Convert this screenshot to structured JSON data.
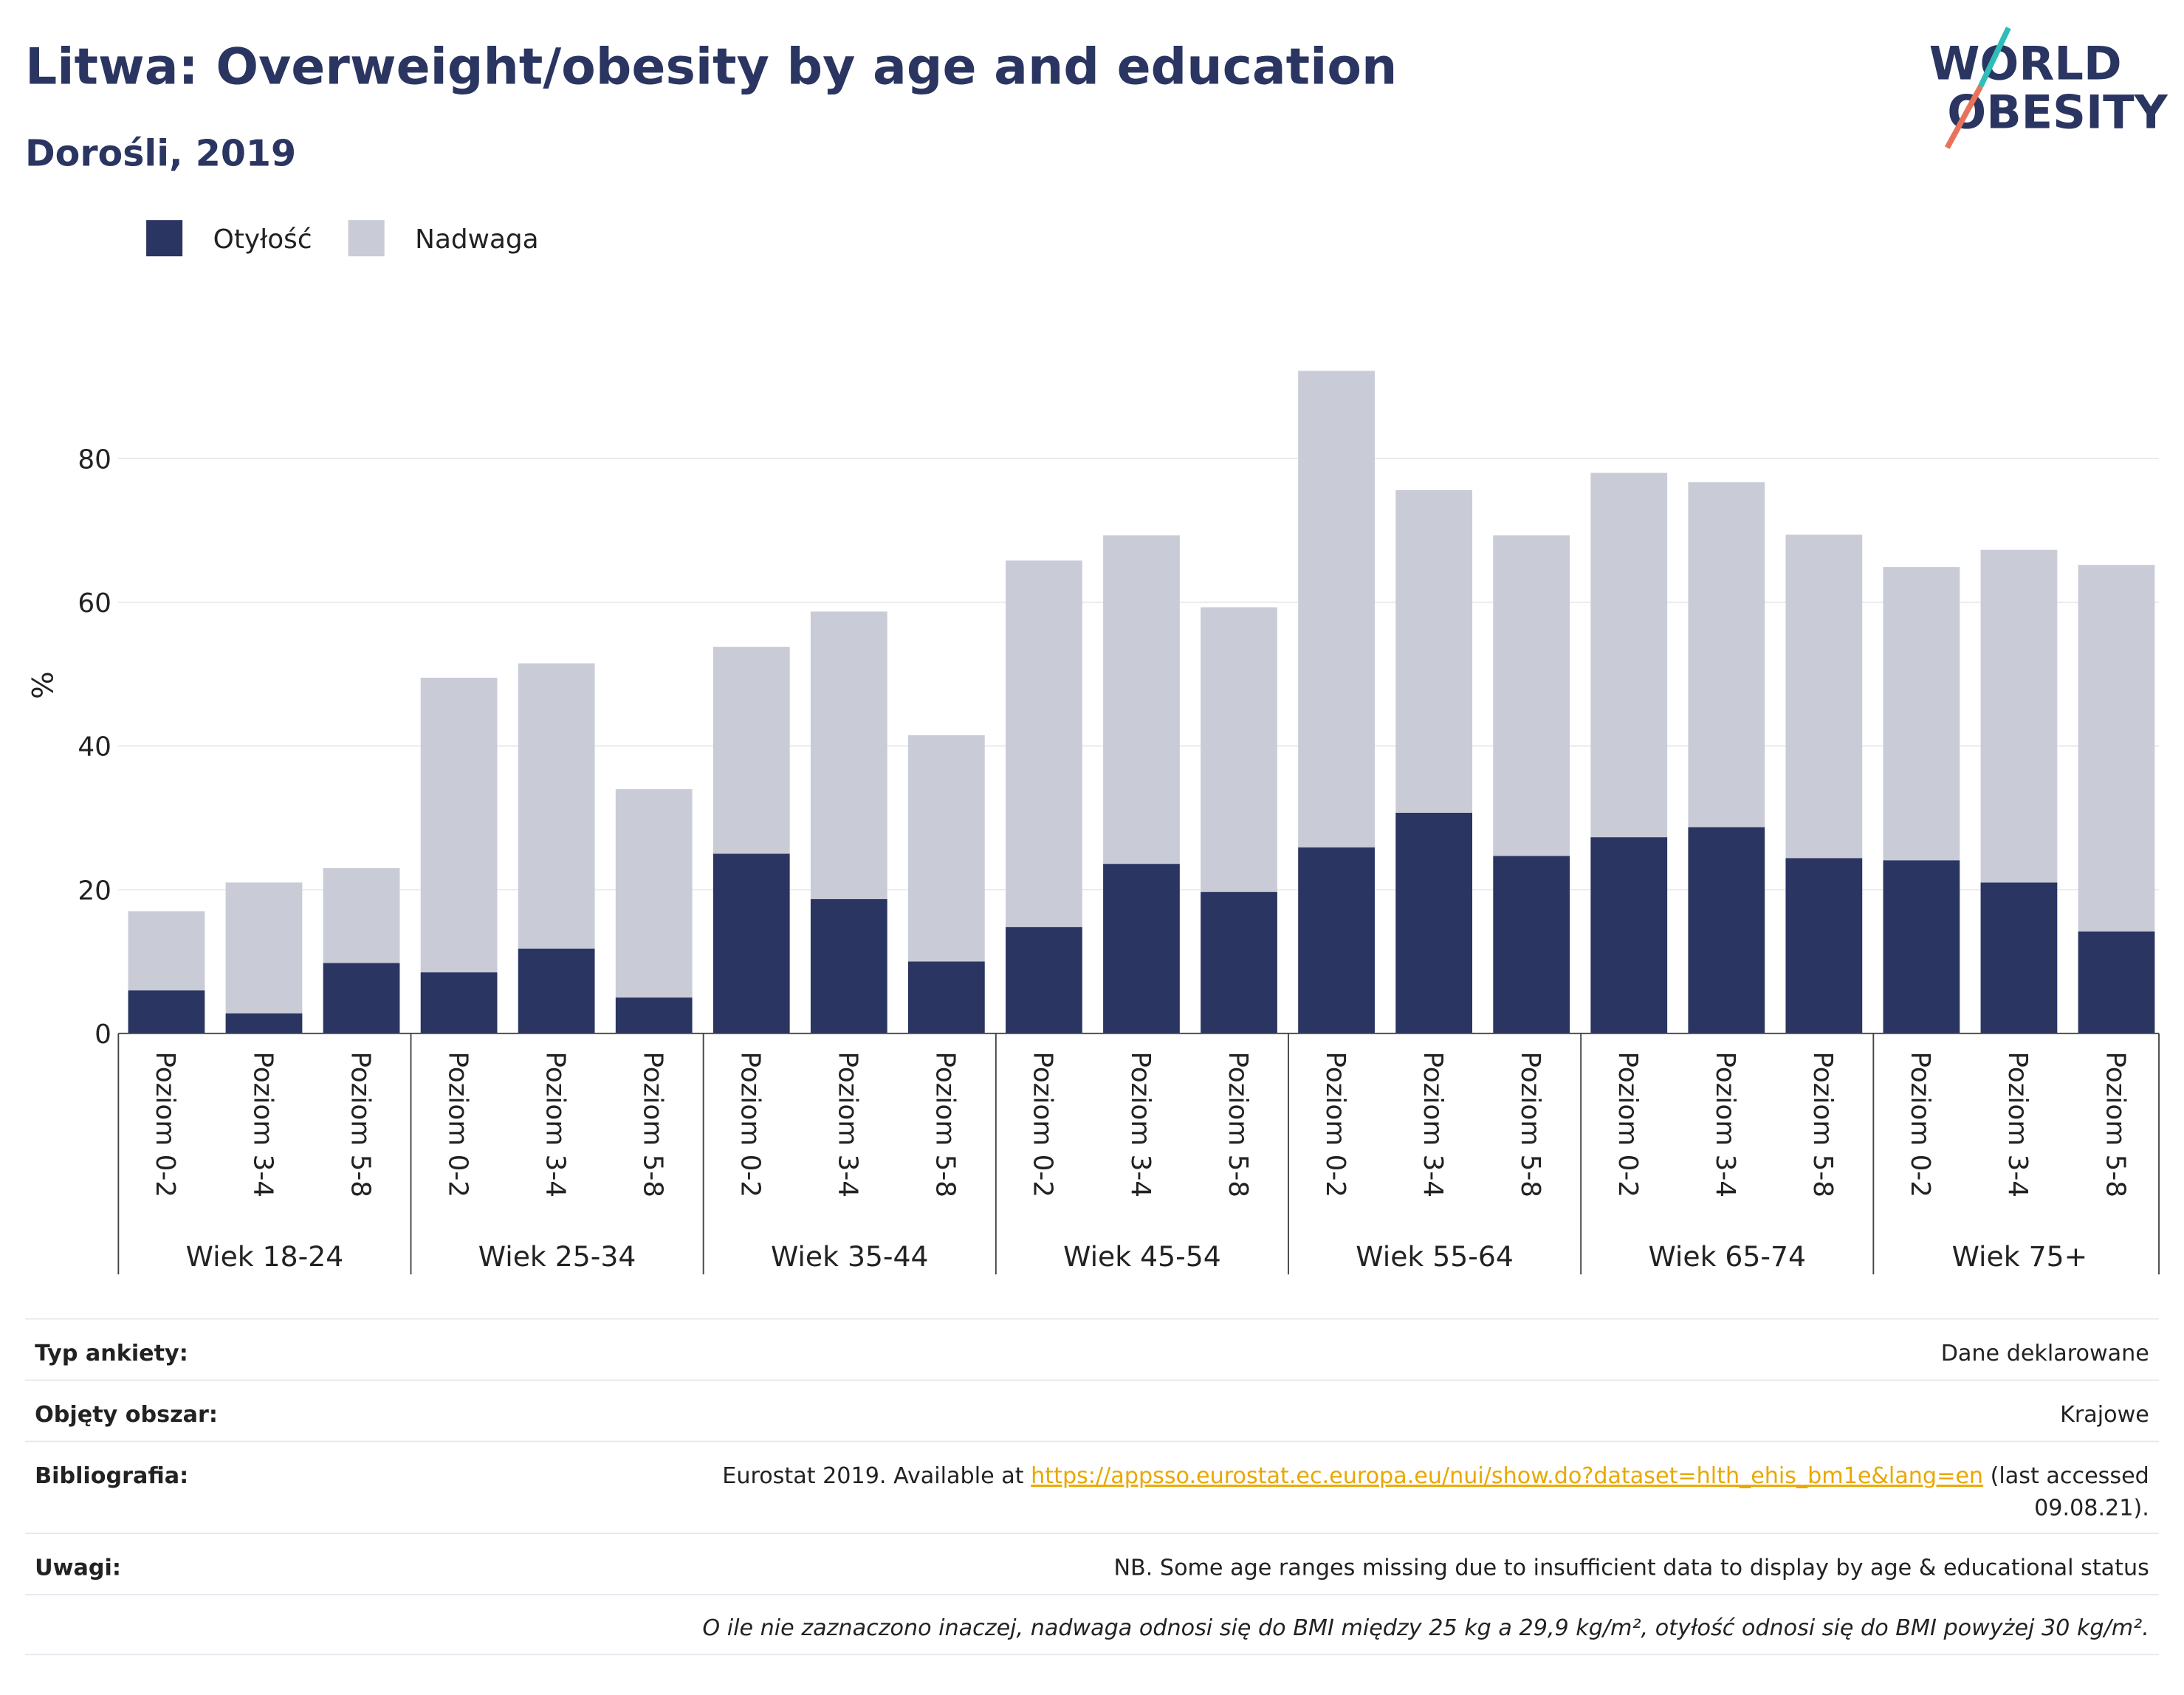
{
  "chart_data": {
    "type": "stacked_bar",
    "title": "Litwa: Overweight/obesity by age and education",
    "subtitle": "Dorośli, 2019",
    "ylabel": "%",
    "categories": [
      "Poziom 0-2",
      "Poziom 3-4",
      "Poziom 5-8",
      "Poziom 0-2",
      "Poziom 3-4",
      "Poziom 5-8",
      "Poziom 0-2",
      "Poziom 3-4",
      "Poziom 5-8",
      "Poziom 0-2",
      "Poziom 3-4",
      "Poziom 5-8",
      "Poziom 0-2",
      "Poziom 3-4",
      "Poziom 5-8",
      "Poziom 0-2",
      "Poziom 3-4",
      "Poziom 5-8",
      "Poziom 0-2",
      "Poziom 3-4",
      "Poziom 5-8"
    ],
    "groups": [
      "Wiek 18-24",
      "Wiek 25-34",
      "Wiek 35-44",
      "Wiek 45-54",
      "Wiek 55-64",
      "Wiek 65-74",
      "Wiek 75+"
    ],
    "series": [
      {
        "name": "Otyłość",
        "color": "#2a3561",
        "values": [
          6,
          2.8,
          9.8,
          8.5,
          11.8,
          5,
          25,
          18.7,
          10,
          14.8,
          23.6,
          19.7,
          25.9,
          30.7,
          24.7,
          27.3,
          28.7,
          24.4,
          24.1,
          21,
          14.2
        ]
      },
      {
        "name": "Nadwaga",
        "color": "#c9cbd6",
        "values": [
          11,
          18.2,
          13.2,
          41,
          39.7,
          29,
          28.8,
          40,
          31.5,
          51,
          45.7,
          39.6,
          66.3,
          44.9,
          44.6,
          50.7,
          48,
          45,
          40.8,
          46.3,
          51
        ]
      }
    ],
    "ylim": [
      0,
      100
    ],
    "yticks": [
      0,
      20,
      40,
      60,
      80
    ],
    "grid": true,
    "legend": "top-left"
  },
  "logo": {
    "line1": "WORLD",
    "line2": "OBESITY"
  },
  "footer": {
    "survey": {
      "label": "Typ ankiety:",
      "value": "Dane deklarowane"
    },
    "area": {
      "label": "Objęty obszar:",
      "value": "Krajowe"
    },
    "bibliography": {
      "label": "Bibliografia:",
      "before": "Eurostat 2019. Available at ",
      "link": "https://appsso.eurostat.ec.europa.eu/nui/show.do?dataset=hlth_ehis_bm1e&lang=en",
      "after_line1": " (last accessed",
      "after_line2": "09.08.21)."
    },
    "notes": {
      "label": "Uwagi:",
      "value": "NB. Some age ranges missing due to insufficient data to display by age & educational status"
    },
    "definition": "O ile nie zaznaczono inaczej, nadwaga odnosi się do BMI między 25 kg a 29,9 kg/m², otyłość odnosi się do BMI powyżej 30 kg/m²."
  }
}
